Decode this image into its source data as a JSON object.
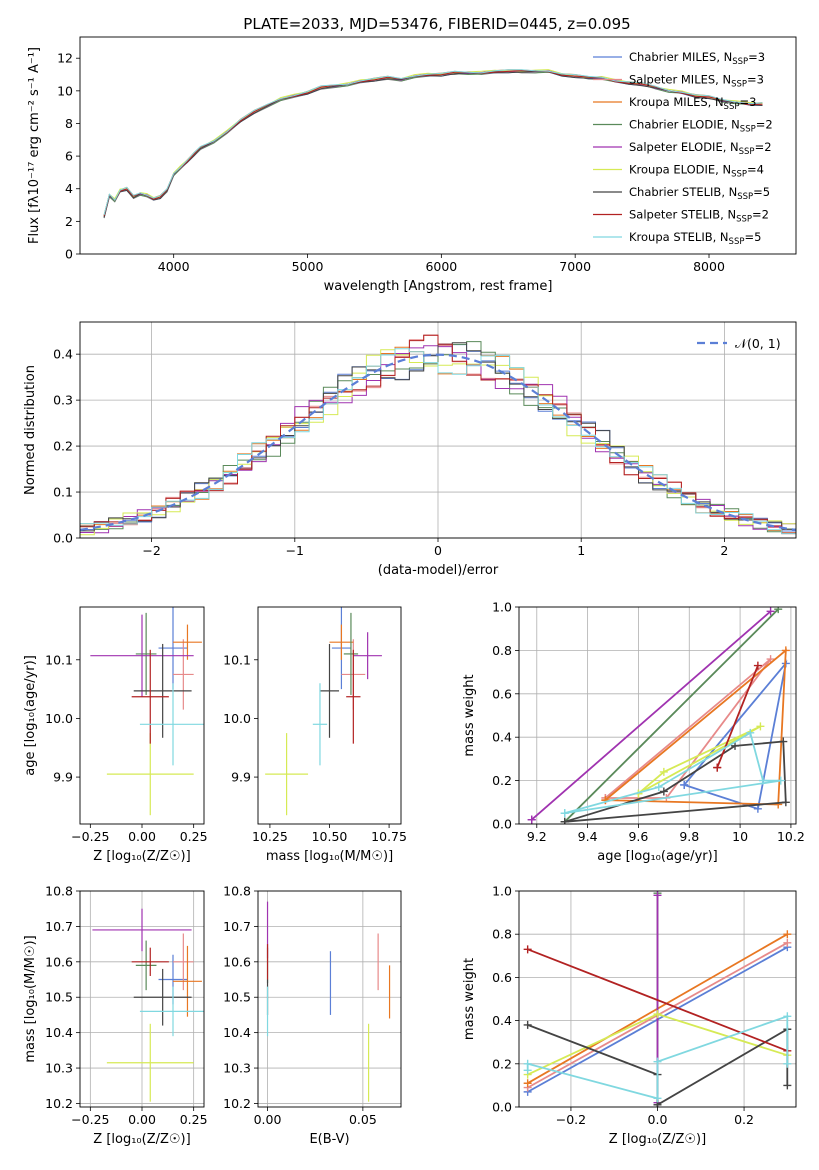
{
  "figure": {
    "title": "PLATE=2033, MJD=53476, FIBERID=0445, z=0.095"
  },
  "series": [
    {
      "name": "Chabrier MILES",
      "nssp": "3",
      "color": "#5b7fd6"
    },
    {
      "name": "Salpeter MILES",
      "nssp": "3",
      "color": "#e78a8a"
    },
    {
      "name": "Kroupa MILES",
      "nssp": "3",
      "color": "#e87722"
    },
    {
      "name": "Chabrier ELODIE",
      "nssp": "2",
      "color": "#5a8a5a"
    },
    {
      "name": "Salpeter ELODIE",
      "nssp": "2",
      "color": "#a033b0"
    },
    {
      "name": "Kroupa ELODIE",
      "nssp": "4",
      "color": "#d6ea55"
    },
    {
      "name": "Chabrier STELIB",
      "nssp": "5",
      "color": "#444444"
    },
    {
      "name": "Salpeter STELIB",
      "nssp": "2",
      "color": "#b22222"
    },
    {
      "name": "Kroupa STELIB",
      "nssp": "5",
      "color": "#80d8e0"
    }
  ],
  "chart_data": [
    {
      "id": "spectrum",
      "type": "line",
      "xlabel": "wavelength [Angstrom, rest frame]",
      "ylabel": "Flux [fλ10⁻¹⁷ erg cm⁻² s⁻¹ A⁻¹]",
      "xlim": [
        3300,
        8650
      ],
      "ylim": [
        0,
        13.3
      ],
      "xticks": [
        4000,
        5000,
        6000,
        7000,
        8000
      ],
      "yticks": [
        0,
        2,
        4,
        6,
        8,
        10,
        12
      ],
      "data_color": "#808080",
      "observed": {
        "x": [
          3480,
          3520,
          3560,
          3600,
          3650,
          3700,
          3750,
          3800,
          3850,
          3900,
          3950,
          4000,
          4050,
          4100,
          4150,
          4200,
          4300,
          4400,
          4500,
          4600,
          4700,
          4800,
          4900,
          5000,
          5100,
          5200,
          5300,
          5400,
          5500,
          5600,
          5700,
          5800,
          5900,
          6000,
          6100,
          6200,
          6300,
          6400,
          6500,
          6600,
          6700,
          6800,
          6900,
          7000,
          7100,
          7200,
          7300,
          7400,
          7500,
          7600,
          7700,
          7800,
          7900,
          8000,
          8100,
          8200,
          8300,
          8400
        ],
        "y": [
          2.2,
          3.5,
          3.2,
          3.8,
          3.9,
          3.4,
          3.6,
          3.5,
          3.3,
          3.4,
          3.8,
          4.8,
          5.2,
          5.6,
          6.0,
          6.4,
          6.8,
          7.4,
          8.1,
          8.6,
          9.0,
          9.4,
          9.6,
          9.8,
          10.1,
          10.2,
          10.3,
          10.5,
          10.6,
          10.7,
          10.6,
          10.8,
          10.9,
          11.0,
          11.0,
          11.1,
          11.0,
          11.1,
          11.2,
          11.1,
          11.1,
          11.2,
          11.0,
          10.9,
          10.8,
          10.8,
          10.6,
          10.5,
          10.4,
          10.2,
          10.0,
          9.9,
          9.7,
          9.6,
          9.4,
          9.3,
          9.2,
          9.2
        ]
      },
      "model": {
        "x": [
          3480,
          3520,
          3560,
          3600,
          3650,
          3700,
          3750,
          3800,
          3850,
          3900,
          3950,
          4000,
          4050,
          4100,
          4150,
          4200,
          4300,
          4400,
          4500,
          4600,
          4700,
          4800,
          4900,
          5000,
          5100,
          5200,
          5300,
          5400,
          5500,
          5600,
          5700,
          5800,
          5900,
          6000,
          6100,
          6200,
          6300,
          6400,
          6500,
          6600,
          6700,
          6800,
          6900,
          7000,
          7100,
          7200,
          7300,
          7400,
          7500,
          7600,
          7700,
          7800,
          7900,
          8000,
          8100,
          8200,
          8300,
          8400
        ],
        "y": [
          2.3,
          3.6,
          3.3,
          3.9,
          4.0,
          3.5,
          3.7,
          3.6,
          3.4,
          3.5,
          3.9,
          4.9,
          5.3,
          5.7,
          6.1,
          6.5,
          6.9,
          7.5,
          8.2,
          8.7,
          9.1,
          9.5,
          9.7,
          9.9,
          10.2,
          10.3,
          10.4,
          10.6,
          10.7,
          10.8,
          10.7,
          10.9,
          11.0,
          11.0,
          11.1,
          11.1,
          11.1,
          11.2,
          11.2,
          11.2,
          11.2,
          11.2,
          11.0,
          10.9,
          10.8,
          10.8,
          10.6,
          10.5,
          10.4,
          10.2,
          10.0,
          9.9,
          9.7,
          9.6,
          9.4,
          9.3,
          9.2,
          9.2
        ]
      }
    },
    {
      "id": "residuals",
      "type": "line",
      "xlabel": "(data-model)/error",
      "ylabel": "Normed distribution",
      "xlim": [
        -2.5,
        2.5
      ],
      "ylim": [
        0,
        0.47
      ],
      "xticks": [
        -2,
        -1,
        0,
        1,
        2
      ],
      "yticks": [
        0.0,
        0.1,
        0.2,
        0.3,
        0.4
      ],
      "legend": "𝒩(0, 1)",
      "reference": {
        "type": "normal",
        "mean": 0,
        "sigma": 1,
        "color": "#5b7fd6"
      }
    },
    {
      "id": "age-vs-Z",
      "type": "scatter",
      "xlabel": "Z [log₁₀(Z/Z☉)]",
      "ylabel": "age  [log₁₀(age/yr)]",
      "xlim": [
        -0.3,
        0.3
      ],
      "ylim": [
        9.82,
        10.19
      ],
      "xticks": [
        -0.25,
        0.0,
        0.25
      ],
      "xticklabels": [
        "−0.25",
        "0.00",
        "0.25"
      ],
      "yticks": [
        9.9,
        10.0,
        10.1
      ],
      "points": [
        {
          "series": "Chabrier MILES",
          "x": 0.15,
          "y": 10.12,
          "xerr": 0.07,
          "yerr": 0.07
        },
        {
          "series": "Salpeter MILES",
          "x": 0.2,
          "y": 10.075,
          "xerr": 0.05,
          "yerr": 0.06
        },
        {
          "series": "Kroupa MILES",
          "x": 0.22,
          "y": 10.13,
          "xerr": 0.07,
          "yerr": 0.03
        },
        {
          "series": "Chabrier ELODIE",
          "x": 0.02,
          "y": 10.11,
          "xerr": 0.05,
          "yerr": 0.07
        },
        {
          "series": "Salpeter ELODIE",
          "x": 0.0,
          "y": 10.107,
          "xerr": 0.25,
          "yerr": 0.07
        },
        {
          "series": "Kroupa ELODIE",
          "x": 0.04,
          "y": 9.905,
          "xerr": 0.21,
          "yerr": 0.07
        },
        {
          "series": "Chabrier STELIB",
          "x": 0.1,
          "y": 10.047,
          "xerr": 0.14,
          "yerr": 0.08
        },
        {
          "series": "Salpeter STELIB",
          "x": 0.04,
          "y": 10.037,
          "xerr": 0.09,
          "yerr": 0.08
        },
        {
          "series": "Kroupa STELIB",
          "x": 0.15,
          "y": 9.99,
          "xerr": 0.16,
          "yerr": 0.07
        }
      ]
    },
    {
      "id": "age-vs-mass",
      "type": "scatter",
      "xlabel": "mass [log₁₀(M/M☉)]",
      "ylabel": "",
      "xlim": [
        10.2,
        10.8
      ],
      "ylim": [
        9.82,
        10.19
      ],
      "xticks": [
        10.25,
        10.5,
        10.75
      ],
      "xticklabels": [
        "10.25",
        "10.50",
        "10.75"
      ],
      "yticks": [
        9.9,
        10.0,
        10.1
      ],
      "points": [
        {
          "series": "Chabrier MILES",
          "x": 10.55,
          "y": 10.12,
          "xerr": 0.04,
          "yerr": 0.07
        },
        {
          "series": "Salpeter MILES",
          "x": 10.6,
          "y": 10.075,
          "xerr": 0.05,
          "yerr": 0.06
        },
        {
          "series": "Kroupa MILES",
          "x": 10.55,
          "y": 10.13,
          "xerr": 0.05,
          "yerr": 0.03
        },
        {
          "series": "Chabrier ELODIE",
          "x": 10.59,
          "y": 10.11,
          "xerr": 0.03,
          "yerr": 0.07
        },
        {
          "series": "Salpeter ELODIE",
          "x": 10.66,
          "y": 10.107,
          "xerr": 0.06,
          "yerr": 0.04
        },
        {
          "series": "Kroupa ELODIE",
          "x": 10.32,
          "y": 9.905,
          "xerr": 0.09,
          "yerr": 0.07
        },
        {
          "series": "Chabrier STELIB",
          "x": 10.5,
          "y": 10.047,
          "xerr": 0.04,
          "yerr": 0.08
        },
        {
          "series": "Salpeter STELIB",
          "x": 10.6,
          "y": 10.037,
          "xerr": 0.03,
          "yerr": 0.08
        },
        {
          "series": "Kroupa STELIB",
          "x": 10.46,
          "y": 9.99,
          "xerr": 0.03,
          "yerr": 0.07
        }
      ]
    },
    {
      "id": "massweight-vs-age",
      "type": "line",
      "xlabel": "age  [log₁₀(age/yr)]",
      "ylabel": "mass weight",
      "xlim": [
        9.13,
        10.22
      ],
      "ylim": [
        0,
        1.0
      ],
      "xticks": [
        9.2,
        9.4,
        9.6,
        9.8,
        10.0,
        10.2
      ],
      "yticks": [
        0.0,
        0.2,
        0.4,
        0.6,
        0.8,
        1.0
      ],
      "lines": [
        {
          "series": "Chabrier MILES",
          "x": [
            9.78,
            10.07,
            10.18,
            9.78
          ],
          "y": [
            0.18,
            0.07,
            0.74,
            0.18
          ]
        },
        {
          "series": "Salpeter MILES",
          "x": [
            9.47,
            10.12,
            9.71,
            9.47
          ],
          "y": [
            0.12,
            0.76,
            0.12,
            0.12
          ]
        },
        {
          "series": "Kroupa MILES",
          "x": [
            9.47,
            10.15,
            10.18,
            9.47
          ],
          "y": [
            0.11,
            0.09,
            0.8,
            0.11
          ]
        },
        {
          "series": "Chabrier ELODIE",
          "x": [
            9.31,
            10.15,
            9.31
          ],
          "y": [
            0.01,
            0.99,
            0.01
          ]
        },
        {
          "series": "Salpeter ELODIE",
          "x": [
            9.18,
            10.12,
            9.18
          ],
          "y": [
            0.02,
            0.98,
            0.02
          ]
        },
        {
          "series": "Kroupa ELODIE",
          "x": [
            9.6,
            9.7,
            10.08,
            9.6
          ],
          "y": [
            0.14,
            0.24,
            0.45,
            0.14
          ]
        },
        {
          "series": "Chabrier STELIB",
          "x": [
            9.31,
            9.7,
            9.98,
            10.17,
            10.18,
            9.31
          ],
          "y": [
            0.01,
            0.15,
            0.36,
            0.38,
            0.1,
            0.01
          ]
        },
        {
          "series": "Salpeter STELIB",
          "x": [
            9.91,
            10.07,
            9.91
          ],
          "y": [
            0.26,
            0.73,
            0.26
          ]
        },
        {
          "series": "Kroupa STELIB",
          "x": [
            9.31,
            9.68,
            10.04,
            10.09,
            10.16,
            9.31
          ],
          "y": [
            0.05,
            0.17,
            0.42,
            0.2,
            0.2,
            0.05
          ]
        }
      ]
    },
    {
      "id": "mass-vs-Z",
      "type": "scatter",
      "xlabel": "Z [log₁₀(Z/Z☉)]",
      "ylabel": "mass [log₁₀(M/M☉)]",
      "xlim": [
        -0.3,
        0.3
      ],
      "ylim": [
        10.19,
        10.8
      ],
      "xticks": [
        -0.25,
        0.0,
        0.25
      ],
      "xticklabels": [
        "−0.25",
        "0.00",
        "0.25"
      ],
      "yticks": [
        10.2,
        10.3,
        10.4,
        10.5,
        10.6,
        10.7,
        10.8
      ],
      "points": [
        {
          "series": "Chabrier MILES",
          "x": 0.15,
          "y": 10.55,
          "xerr": 0.07,
          "yerr": 0.07
        },
        {
          "series": "Salpeter MILES",
          "x": 0.2,
          "y": 10.6,
          "xerr": 0.05,
          "yerr": 0.08
        },
        {
          "series": "Kroupa MILES",
          "x": 0.22,
          "y": 10.545,
          "xerr": 0.07,
          "yerr": 0.1
        },
        {
          "series": "Chabrier ELODIE",
          "x": 0.02,
          "y": 10.59,
          "xerr": 0.05,
          "yerr": 0.07
        },
        {
          "series": "Salpeter ELODIE",
          "x": 0.0,
          "y": 10.69,
          "xerr": 0.24,
          "yerr": 0.06
        },
        {
          "series": "Kroupa ELODIE",
          "x": 0.04,
          "y": 10.315,
          "xerr": 0.21,
          "yerr": 0.11
        },
        {
          "series": "Chabrier STELIB",
          "x": 0.1,
          "y": 10.5,
          "xerr": 0.14,
          "yerr": 0.08
        },
        {
          "series": "Salpeter STELIB",
          "x": 0.04,
          "y": 10.6,
          "xerr": 0.09,
          "yerr": 0.04
        },
        {
          "series": "Kroupa STELIB",
          "x": 0.15,
          "y": 10.46,
          "xerr": 0.16,
          "yerr": 0.07
        }
      ]
    },
    {
      "id": "mass-vs-EBV",
      "type": "scatter",
      "xlabel": "E(B-V)",
      "ylabel": "",
      "xlim": [
        -0.005,
        0.07
      ],
      "ylim": [
        10.19,
        10.8
      ],
      "xticks": [
        0.0,
        0.05
      ],
      "xticklabels": [
        "0.00",
        "0.05"
      ],
      "yticks": [
        10.2,
        10.3,
        10.4,
        10.5,
        10.6,
        10.7,
        10.8
      ],
      "points": [
        {
          "series": "Chabrier MILES",
          "x": 0.033,
          "y": 10.54,
          "xerr": 0,
          "yerr": 0.09
        },
        {
          "series": "Salpeter MILES",
          "x": 0.058,
          "y": 10.6,
          "xerr": 0,
          "yerr": 0.08
        },
        {
          "series": "Kroupa MILES",
          "x": 0.064,
          "y": 10.515,
          "xerr": 0,
          "yerr": 0.075
        },
        {
          "series": "Chabrier ELODIE",
          "x": 0.0,
          "y": 10.59,
          "xerr": 0,
          "yerr": 0.05
        },
        {
          "series": "Salpeter ELODIE",
          "x": 0.0,
          "y": 10.69,
          "xerr": 0,
          "yerr": 0.08
        },
        {
          "series": "Kroupa ELODIE",
          "x": 0.053,
          "y": 10.315,
          "xerr": 0,
          "yerr": 0.11
        },
        {
          "series": "Chabrier STELIB",
          "x": 0.0,
          "y": 10.5,
          "xerr": 0,
          "yerr": 0.05
        },
        {
          "series": "Salpeter STELIB",
          "x": 0.0,
          "y": 10.6,
          "xerr": 0,
          "yerr": 0.05
        },
        {
          "series": "Kroupa STELIB",
          "x": 0.0,
          "y": 10.46,
          "xerr": 0,
          "yerr": 0.07
        }
      ]
    },
    {
      "id": "massweight-vs-Z",
      "type": "line",
      "xlabel": "Z [log₁₀(Z/Z☉)]",
      "ylabel": "mass weight",
      "xlim": [
        -0.32,
        0.32
      ],
      "ylim": [
        0,
        1.0
      ],
      "xticks": [
        -0.2,
        0.0,
        0.2
      ],
      "xticklabels": [
        "−0.2",
        "0.0",
        "0.2"
      ],
      "yticks": [
        0.0,
        0.2,
        0.4,
        0.6,
        0.8,
        1.0
      ],
      "lines": [
        {
          "series": "Chabrier MILES",
          "x": [
            -0.3,
            0.3
          ],
          "y": [
            0.07,
            0.74
          ]
        },
        {
          "series": "Salpeter MILES",
          "x": [
            -0.3,
            0.3
          ],
          "y": [
            0.09,
            0.76
          ]
        },
        {
          "series": "Kroupa MILES",
          "x": [
            -0.3,
            0.3
          ],
          "y": [
            0.11,
            0.8
          ]
        },
        {
          "series": "Chabrier ELODIE",
          "x": [
            0.0,
            0.0
          ],
          "y": [
            0.01,
            0.99
          ]
        },
        {
          "series": "Salpeter ELODIE",
          "x": [
            0.0,
            0.0
          ],
          "y": [
            0.02,
            0.98
          ]
        },
        {
          "series": "Kroupa ELODIE",
          "x": [
            -0.3,
            0.0,
            0.3
          ],
          "y": [
            0.15,
            0.43,
            0.24
          ]
        },
        {
          "series": "Chabrier STELIB",
          "x": [
            -0.3,
            0.0,
            0.0,
            0.3,
            0.3
          ],
          "y": [
            0.38,
            0.15,
            0.01,
            0.36,
            0.1
          ]
        },
        {
          "series": "Salpeter STELIB",
          "x": [
            -0.3,
            0.3
          ],
          "y": [
            0.73,
            0.26
          ]
        },
        {
          "series": "Kroupa STELIB",
          "x": [
            -0.3,
            -0.3,
            0.0,
            0.0,
            0.3,
            0.3
          ],
          "y": [
            0.17,
            0.2,
            0.04,
            0.21,
            0.42,
            0.2
          ]
        }
      ]
    }
  ]
}
